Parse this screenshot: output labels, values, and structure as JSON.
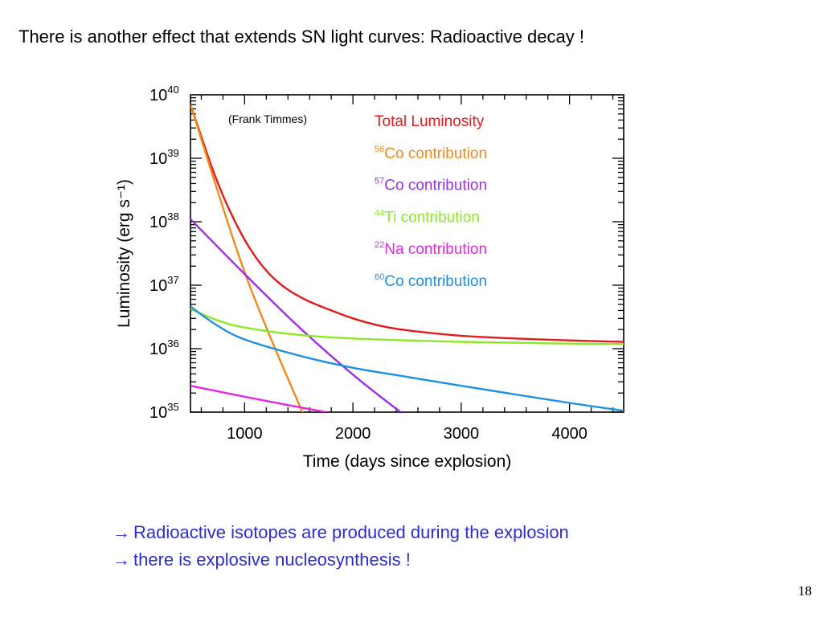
{
  "slide": {
    "title": "There is another effect that extends SN light curves: Radioactive decay !",
    "bullets": [
      "Radioactive isotopes are produced during the explosion",
      "there is explosive nucleosynthesis !"
    ],
    "arrow_glyph": "→",
    "page_number": "18"
  },
  "chart_data": {
    "type": "line",
    "credit": "(Frank Timmes)",
    "xlabel": "Time (days since explosion)",
    "ylabel": "Luminosity (erg s⁻¹)",
    "xlim": [
      500,
      4500
    ],
    "ylim": [
      1e+35,
      1e+40
    ],
    "yscale": "log",
    "xticks": [
      1000,
      2000,
      3000,
      4000
    ],
    "yticks": [
      {
        "value": 1e+35,
        "base": "10",
        "exp": "35"
      },
      {
        "value": 1e+36,
        "base": "10",
        "exp": "36"
      },
      {
        "value": 1e+37,
        "base": "10",
        "exp": "37"
      },
      {
        "value": 1e+38,
        "base": "10",
        "exp": "38"
      },
      {
        "value": 1e+39,
        "base": "10",
        "exp": "39"
      },
      {
        "value": 1e+40,
        "base": "10",
        "exp": "40"
      }
    ],
    "legend_position": "top-right",
    "series": [
      {
        "name": "Total Luminosity",
        "sup": "",
        "label": "Total Luminosity",
        "color": "#e31a1c",
        "x": [
          500,
          600,
          700,
          800,
          900,
          1000,
          1100,
          1200,
          1300,
          1400,
          1500,
          1600,
          1800,
          2000,
          2250,
          2500,
          3000,
          3500,
          4000,
          4500
        ],
        "y": [
          7e+39,
          2.2e+39,
          7e+38,
          2.6e+38,
          1.1e+38,
          5.2e+37,
          2.8e+37,
          1.7e+37,
          1.15e+37,
          8.5e+36,
          6.7e+36,
          5.5e+36,
          4e+36,
          3e+36,
          2.3e+36,
          1.95e+36,
          1.6e+36,
          1.45e+36,
          1.35e+36,
          1.28e+36
        ]
      },
      {
        "name": "56Co contribution",
        "sup": "56",
        "label": "Co contribution",
        "color": "#f0891e",
        "x": [
          500,
          1000,
          1500,
          1540
        ],
        "y": [
          7e+39,
          1.6e+37,
          1.35e+35,
          1e+35
        ]
      },
      {
        "name": "57Co contribution",
        "sup": "57",
        "label": "Co contribution",
        "color": "#9b30e0",
        "x": [
          500,
          1000,
          1500,
          2000,
          2440
        ],
        "y": [
          1.1e+38,
          1.5e+37,
          2.2e+36,
          3.9e+35,
          1e+35
        ]
      },
      {
        "name": "44Ti contribution",
        "sup": "44",
        "label": "Ti contribution",
        "color": "#8ee62a",
        "x": [
          500,
          750,
          1000,
          1500,
          2000,
          2500,
          3000,
          3500,
          4000,
          4500
        ],
        "y": [
          4.2e+36,
          2.8e+36,
          2.15e+36,
          1.65e+36,
          1.45e+36,
          1.35e+36,
          1.28e+36,
          1.24e+36,
          1.2e+36,
          1.18e+36
        ]
      },
      {
        "name": "22Na contribution",
        "sup": "22",
        "label": "Na contribution",
        "color": "#e22be0",
        "x": [
          500,
          1000,
          1500,
          1760
        ],
        "y": [
          2.6e+35,
          1.75e+35,
          1.2e+35,
          1e+35
        ]
      },
      {
        "name": "60Co contribution",
        "sup": "60",
        "label": "Co contribution",
        "color": "#1f8fe0",
        "x": [
          500,
          750,
          1000,
          1500,
          2000,
          2500,
          3000,
          3500,
          4000,
          4500
        ],
        "y": [
          4.6e+36,
          2.3e+36,
          1.4e+36,
          7.8e+35,
          5e+35,
          3.6e+35,
          2.6e+35,
          1.9e+35,
          1.4e+35,
          1.05e+35
        ]
      }
    ]
  }
}
